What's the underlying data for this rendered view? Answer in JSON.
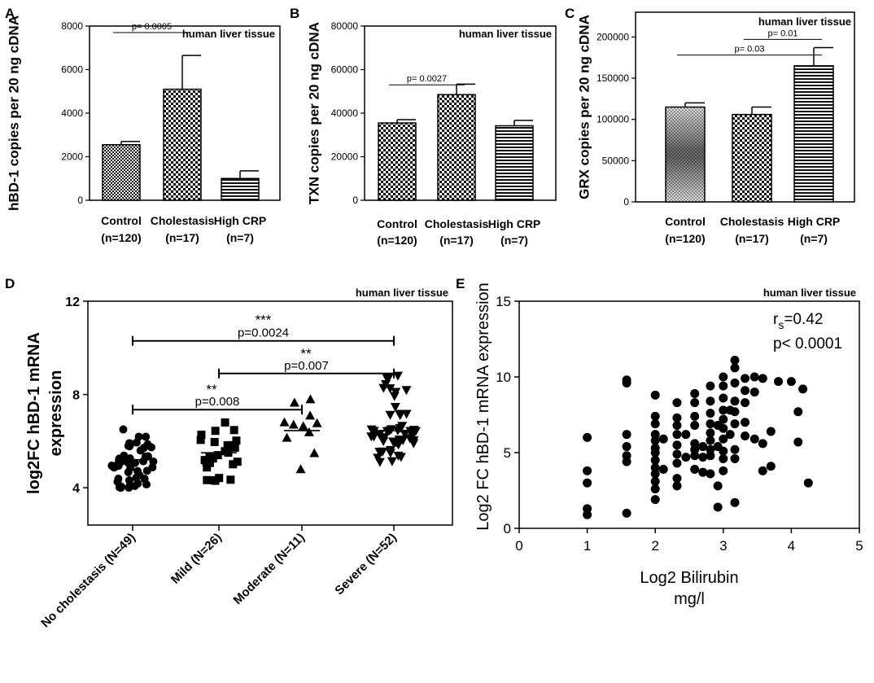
{
  "chart_data": [
    {
      "id": "A",
      "type": "bar",
      "panel_label": "A",
      "title": "human liver tissue",
      "ylabel": "hBD-1 copies per 20 ng cDNA",
      "ylim": [
        0,
        8000
      ],
      "yticks": [
        0,
        2000,
        4000,
        6000,
        8000
      ],
      "categories": [
        [
          "Control",
          "(n=120)"
        ],
        [
          "Cholestasis",
          "(n=17)"
        ],
        [
          "High CRP",
          "(n=7)"
        ]
      ],
      "values": [
        2550,
        5100,
        1000
      ],
      "errors": [
        150,
        1550,
        350
      ],
      "patterns": [
        "dense",
        "check",
        "hstripe"
      ],
      "significance": [
        {
          "from": 0,
          "to": 1,
          "y": 7700,
          "label": "p= 0.0005"
        }
      ]
    },
    {
      "id": "B",
      "type": "bar",
      "panel_label": "B",
      "title": "human liver tissue",
      "ylabel": "TXN copies per 20 ng cDNA",
      "ylim": [
        0,
        80000
      ],
      "yticks": [
        0,
        20000,
        40000,
        60000,
        80000
      ],
      "categories": [
        [
          "Control",
          "(n=120)"
        ],
        [
          "Cholestasis",
          "(n=17)"
        ],
        [
          "High CRP",
          "(n=7)"
        ]
      ],
      "values": [
        35500,
        48500,
        34200
      ],
      "errors": [
        1500,
        4800,
        2500
      ],
      "patterns": [
        "check",
        "check",
        "hstripe"
      ],
      "significance": [
        {
          "from": 0,
          "to": 1,
          "y": 53000,
          "label": "p= 0.0027"
        }
      ]
    },
    {
      "id": "C",
      "type": "bar",
      "panel_label": "C",
      "title": "human liver tissue",
      "ylabel": "GRX copies per 20 ng cDNA",
      "ylim": [
        0,
        230000
      ],
      "yticks": [
        0,
        50000,
        100000,
        150000,
        200000
      ],
      "categories": [
        [
          "Control",
          "(n=120)"
        ],
        [
          "Cholestasis",
          "(n=17)"
        ],
        [
          "High CRP",
          "(n=7)"
        ]
      ],
      "values": [
        115000,
        106000,
        165000
      ],
      "errors": [
        5000,
        9000,
        22000
      ],
      "patterns": [
        "gradient",
        "check",
        "hstripe"
      ],
      "significance": [
        {
          "from": 0,
          "to": 2,
          "y": 178000,
          "label": "p= 0.03"
        },
        {
          "from": 1,
          "to": 2,
          "y": 197000,
          "label": "p= 0.01"
        }
      ]
    },
    {
      "id": "D",
      "type": "scatter",
      "panel_label": "D",
      "title": "human liver tissue",
      "ylabel": [
        "log2FC hBD-1 mRNA",
        "expression"
      ],
      "ylim": [
        2.4,
        12
      ],
      "yticks": [
        4,
        8,
        12
      ],
      "categories": [
        "No cholestasis (N=49)",
        "Mild (N=26)",
        "Moderate (N=11)",
        "Severe (N=52)"
      ],
      "markers": [
        "circle",
        "square",
        "triangle-up",
        "triangle-down"
      ],
      "group_counts": [
        49,
        26,
        11,
        52
      ],
      "group_means": [
        5.2,
        5.5,
        6.45,
        6.45
      ],
      "group_ranges": [
        [
          4.0,
          6.5
        ],
        [
          4.3,
          6.8
        ],
        [
          4.8,
          7.8
        ],
        [
          5.1,
          8.8
        ]
      ],
      "significance": [
        {
          "from": 0,
          "to": 3,
          "y": 10.3,
          "label": "p=0.0024",
          "stars": "***"
        },
        {
          "from": 1,
          "to": 3,
          "y": 8.9,
          "label": "p=0.007",
          "stars": "**",
          "stars_side": "right"
        },
        {
          "from": 0,
          "to": 2,
          "y": 7.35,
          "label": "p=0.008",
          "stars": "**",
          "stars_side": "right-top"
        }
      ]
    },
    {
      "id": "E",
      "type": "scatter",
      "panel_label": "E",
      "title": "human liver tissue",
      "xlabel": [
        "Log2 Bilirubin",
        "mg/l"
      ],
      "ylabel": "Log2 FC hBD-1 mRNA expression",
      "xlim": [
        0,
        5
      ],
      "ylim": [
        0,
        15
      ],
      "xticks": [
        0,
        1,
        2,
        3,
        4,
        5
      ],
      "yticks": [
        0,
        5,
        10,
        15
      ],
      "stat_rs": "r",
      "stat_rs_sub": "s",
      "stat_rs_value": "=0.42",
      "stat_p": "p< 0.0001",
      "points": [
        [
          1,
          6.0
        ],
        [
          1,
          3.8
        ],
        [
          1,
          3.0
        ],
        [
          1,
          1.3
        ],
        [
          1,
          0.9
        ],
        [
          1.58,
          9.8
        ],
        [
          1.58,
          9.6
        ],
        [
          1.58,
          6.2
        ],
        [
          1.58,
          5.4
        ],
        [
          1.58,
          4.8
        ],
        [
          1.58,
          4.4
        ],
        [
          1.58,
          1.0
        ],
        [
          2,
          8.8
        ],
        [
          2,
          7.4
        ],
        [
          2,
          6.9
        ],
        [
          2,
          6.2
        ],
        [
          2,
          5.8
        ],
        [
          2,
          5.3
        ],
        [
          2,
          5.0
        ],
        [
          2,
          4.5
        ],
        [
          2,
          4.0
        ],
        [
          2,
          3.6
        ],
        [
          2,
          3.1
        ],
        [
          2,
          2.6
        ],
        [
          2,
          1.9
        ],
        [
          2.12,
          5.9
        ],
        [
          2.12,
          3.9
        ],
        [
          2.32,
          8.3
        ],
        [
          2.32,
          7.3
        ],
        [
          2.32,
          6.8
        ],
        [
          2.32,
          6.2
        ],
        [
          2.32,
          5.5
        ],
        [
          2.32,
          4.9
        ],
        [
          2.32,
          4.3
        ],
        [
          2.32,
          3.3
        ],
        [
          2.32,
          2.8
        ],
        [
          2.45,
          6.2
        ],
        [
          2.45,
          4.7
        ],
        [
          2.58,
          8.9
        ],
        [
          2.58,
          8.3
        ],
        [
          2.58,
          7.4
        ],
        [
          2.58,
          6.8
        ],
        [
          2.58,
          5.6
        ],
        [
          2.58,
          5.2
        ],
        [
          2.58,
          4.8
        ],
        [
          2.58,
          3.9
        ],
        [
          2.7,
          5.4
        ],
        [
          2.7,
          4.7
        ],
        [
          2.7,
          3.7
        ],
        [
          2.81,
          9.4
        ],
        [
          2.81,
          8.4
        ],
        [
          2.81,
          7.6
        ],
        [
          2.81,
          6.9
        ],
        [
          2.81,
          6.3
        ],
        [
          2.81,
          5.8
        ],
        [
          2.81,
          5.2
        ],
        [
          2.81,
          4.8
        ],
        [
          2.81,
          3.6
        ],
        [
          2.92,
          6.8
        ],
        [
          2.92,
          5.4
        ],
        [
          2.92,
          2.8
        ],
        [
          2.92,
          1.4
        ],
        [
          3,
          10.0
        ],
        [
          3,
          9.4
        ],
        [
          3,
          8.6
        ],
        [
          3,
          7.8
        ],
        [
          3,
          7.2
        ],
        [
          3,
          6.6
        ],
        [
          3,
          5.9
        ],
        [
          3,
          5.1
        ],
        [
          3,
          4.6
        ],
        [
          3,
          3.8
        ],
        [
          3.1,
          7.8
        ],
        [
          3.1,
          6.2
        ],
        [
          3.17,
          11.1
        ],
        [
          3.17,
          10.6
        ],
        [
          3.17,
          9.6
        ],
        [
          3.17,
          8.4
        ],
        [
          3.17,
          7.7
        ],
        [
          3.17,
          6.9
        ],
        [
          3.17,
          5.2
        ],
        [
          3.17,
          4.6
        ],
        [
          3.17,
          1.7
        ],
        [
          3.32,
          9.9
        ],
        [
          3.32,
          9.1
        ],
        [
          3.32,
          8.3
        ],
        [
          3.32,
          7.0
        ],
        [
          3.32,
          6.1
        ],
        [
          3.46,
          10.0
        ],
        [
          3.46,
          9.0
        ],
        [
          3.46,
          5.9
        ],
        [
          3.58,
          9.9
        ],
        [
          3.58,
          5.6
        ],
        [
          3.58,
          3.8
        ],
        [
          3.7,
          6.4
        ],
        [
          3.7,
          4.1
        ],
        [
          3.81,
          9.7
        ],
        [
          4,
          9.7
        ],
        [
          4.1,
          7.7
        ],
        [
          4.1,
          5.7
        ],
        [
          4.17,
          9.2
        ],
        [
          4.25,
          3.0
        ]
      ]
    }
  ]
}
